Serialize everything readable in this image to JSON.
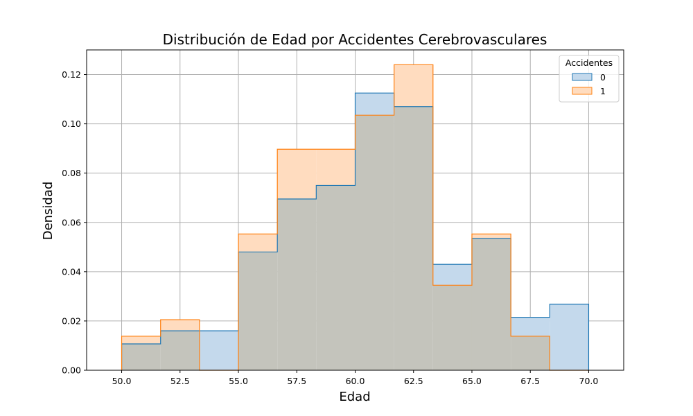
{
  "chart_data": {
    "type": "histogram",
    "title": "Distribución de Edad por Accidentes Cerebrovasculares",
    "xlabel": "Edad",
    "ylabel": "Densidad",
    "xlim": [
      48.5,
      71.5
    ],
    "ylim": [
      0,
      0.13
    ],
    "x_ticks": [
      50.0,
      52.5,
      55.0,
      57.5,
      60.0,
      62.5,
      65.0,
      67.5,
      70.0
    ],
    "x_tick_labels": [
      "50.0",
      "52.5",
      "55.0",
      "57.5",
      "60.0",
      "62.5",
      "65.0",
      "67.5",
      "70.0"
    ],
    "y_ticks": [
      0,
      0.02,
      0.04,
      0.06,
      0.08,
      0.1,
      0.12
    ],
    "y_tick_labels": [
      "0.00",
      "0.02",
      "0.04",
      "0.06",
      "0.08",
      "0.10",
      "0.12"
    ],
    "grid": true,
    "legend": {
      "title": "Accidentes",
      "placement": "top-right"
    },
    "bin_edges": [
      50.0,
      51.667,
      53.333,
      55.0,
      56.667,
      58.333,
      60.0,
      61.667,
      63.333,
      65.0,
      66.667,
      68.333,
      70.0
    ],
    "series": [
      {
        "name": "0",
        "color": "#1f77b4",
        "fill": "#c4d9ec",
        "values": [
          0.0107,
          0.016,
          0.016,
          0.048,
          0.0695,
          0.075,
          0.1125,
          0.107,
          0.043,
          0.0535,
          0.0215,
          0.0268
        ]
      },
      {
        "name": "1",
        "color": "#ff7f0e",
        "fill": "#ffdcbf",
        "values": [
          0.0138,
          0.0205,
          0.0,
          0.0553,
          0.0897,
          0.0897,
          0.1035,
          0.124,
          0.0345,
          0.0553,
          0.0138,
          0.0
        ]
      }
    ],
    "overlap_color": "#c4c4bc"
  }
}
